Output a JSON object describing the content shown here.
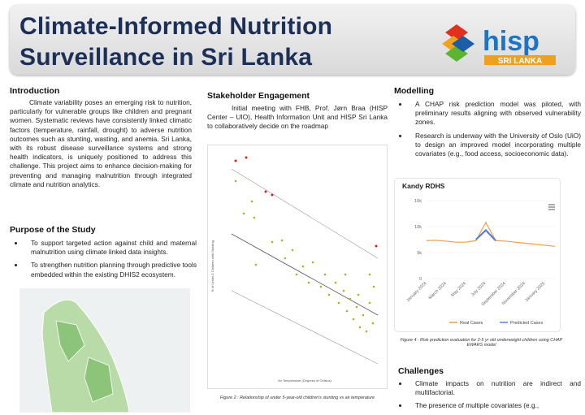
{
  "header": {
    "title_line1": "Climate-Informed Nutrition",
    "title_line2": "Surveillance in Sri Lanka",
    "logo_text": "hisp",
    "logo_subtext": "SRI LANKA"
  },
  "introduction": {
    "heading": "Introduction",
    "body": "Climate variability poses an emerging risk to nutrition, particularly for vulnerable groups like children and pregnant women. Systematic reviews have consistently linked climatic factors (temperature, rainfall, drought) to adverse nutrition outcomes such as stunting, wasting, and anemia. Sri Lanka, with its robust disease surveillance systems and strong health indicators, is uniquely positioned to address this challenge. This project aims to enhance decision-making for preventing and managing malnutrition through integrated climate and nutrition analytics."
  },
  "purpose": {
    "heading": "Purpose of the Study",
    "bullets": [
      "To support targeted action against child and maternal malnutrition using climate linked data insights.",
      "To strengthen nutrition planning through predictive tools embedded within the existing DHIS2 ecosystem."
    ]
  },
  "stakeholder": {
    "heading": "Stakeholder Engagement",
    "body": "Initial meeting with FHB, Prof. Jørn Braa (HISP Center – UIO), Health Information Unit and HISP Sri Lanka to collaboratively decide on the roadmap",
    "figure": {
      "x_label": "Air Temperature (Degrees of Celsius)",
      "y_label": "% of Under-5 Children with Stunting",
      "caption": "Figure 2 : Relationship of under 5-year-old children's stunting vs air temperature"
    }
  },
  "modelling": {
    "heading": "Modelling",
    "bullets": [
      "A CHAP risk prediction model was piloted, with preliminary results aligning with observed vulnerability zones.",
      "Research is underway with the University of Oslo (UiO) to design an improved model incorporating multiple covariates (e.g., food access, socioeconomic data)."
    ],
    "caption": "Figure 4 : Risk prediction evaluation for 2-5 yr old underweight children using CHAP EWARS model"
  },
  "chart_data": {
    "type": "line",
    "title": "Kandy RDHS",
    "categories": [
      "January 2024",
      null,
      "March 2024",
      null,
      "May 2024",
      null,
      "July 2024",
      null,
      "September 2024",
      null,
      "November 2024",
      null,
      "January 2025",
      null
    ],
    "series": [
      {
        "name": "Real Cases",
        "color": "#e8a04c",
        "values": [
          7300,
          7350,
          7200,
          7000,
          7000,
          7300,
          10800,
          7300,
          7200,
          7000,
          6800,
          6600,
          6400,
          6200
        ]
      },
      {
        "name": "Predicted Cases",
        "color": "#5b7fd6",
        "values": [
          null,
          null,
          null,
          null,
          null,
          7500,
          9300,
          7300,
          null,
          null,
          null,
          null,
          null,
          null
        ]
      }
    ],
    "ylim": [
      0,
      15000
    ],
    "yticks": [
      {
        "value": 0,
        "label": "0"
      },
      {
        "value": 5000,
        "label": "5k"
      },
      {
        "value": 10000,
        "label": "10k"
      },
      {
        "value": 15000,
        "label": "15k"
      }
    ],
    "grid": true
  },
  "challenges": {
    "heading": "Challenges",
    "bullets": [
      "Climate impacts on nutrition are indirect and multifactorial.",
      "The presence of multiple covariates (e.g.,"
    ]
  }
}
